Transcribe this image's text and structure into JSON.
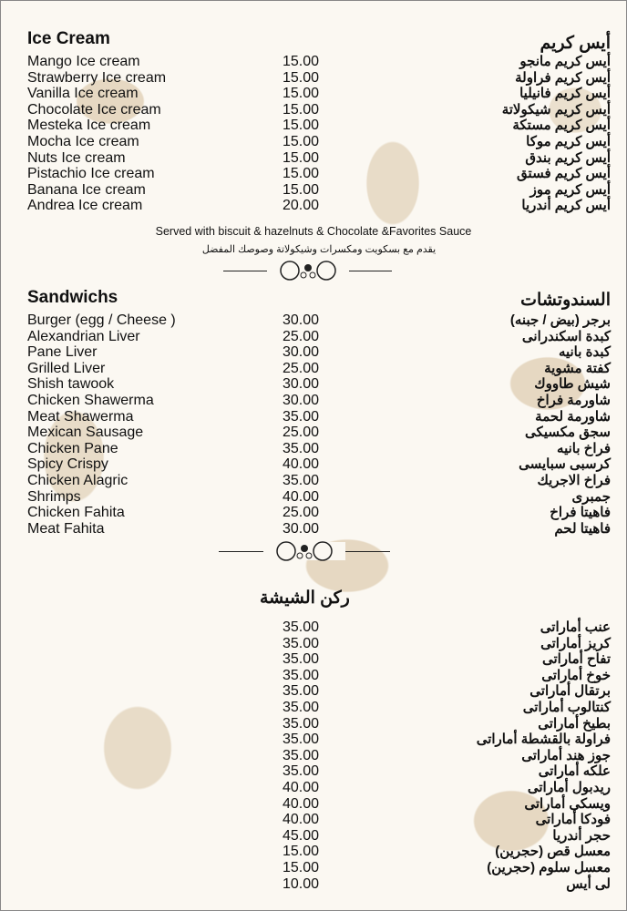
{
  "ice_cream": {
    "title_en": "Ice Cream",
    "title_ar": "أيس كريم",
    "items": [
      {
        "en": "Mango Ice cream",
        "price": "15.00",
        "ar": "أيس كريم مانجو"
      },
      {
        "en": "Strawberry Ice cream",
        "price": "15.00",
        "ar": "أيس كريم فراولة"
      },
      {
        "en": "Vanilla Ice cream",
        "price": "15.00",
        "ar": "أيس كريم فانيليا"
      },
      {
        "en": "Chocolate Ice cream",
        "price": "15.00",
        "ar": "أيس كريم شيكولاتة"
      },
      {
        "en": "Mesteka Ice cream",
        "price": "15.00",
        "ar": "أيس كريم مستكة"
      },
      {
        "en": "Mocha Ice cream",
        "price": "15.00",
        "ar": "أيس كريم موكا"
      },
      {
        "en": "Nuts Ice cream",
        "price": "15.00",
        "ar": "أيس كريم بندق"
      },
      {
        "en": "Pistachio Ice cream",
        "price": "15.00",
        "ar": "أيس كريم فستق"
      },
      {
        "en": "Banana Ice cream",
        "price": "15.00",
        "ar": "أيس كريم موز"
      },
      {
        "en": "Andrea Ice cream",
        "price": "20.00",
        "ar": "أيس كريم أندريا"
      }
    ],
    "note_en": "Served with biscuit & hazelnuts & Chocolate &Favorites Sauce",
    "note_ar": "يقدم مع بسكويت ومكسرات وشيكولاتة وصوصك المفضل"
  },
  "sandwiches": {
    "title_en": "Sandwichs",
    "title_ar": "السندوتشات",
    "items": [
      {
        "en": "Burger (egg / Cheese )",
        "price": "30.00",
        "ar": "برجر (بيض / جبنه)"
      },
      {
        "en": "Alexandrian Liver",
        "price": "25.00",
        "ar": "كبدة اسكندرانى"
      },
      {
        "en": "Pane Liver",
        "price": "30.00",
        "ar": "كبدة بانيه"
      },
      {
        "en": "Grilled Liver",
        "price": "25.00",
        "ar": "كفتة مشوية"
      },
      {
        "en": "Shish tawook",
        "price": "30.00",
        "ar": "شيش طاووك"
      },
      {
        "en": "Chicken Shawerma",
        "price": "30.00",
        "ar": "شاورمة فراخ"
      },
      {
        "en": "Meat Shawerma",
        "price": "35.00",
        "ar": "شاورمة لحمة"
      },
      {
        "en": "Mexican Sausage",
        "price": "25.00",
        "ar": "سجق مكسيكى"
      },
      {
        "en": "Chicken Pane",
        "price": "35.00",
        "ar": "فراخ بانيه"
      },
      {
        "en": "Spicy Crispy",
        "price": "40.00",
        "ar": "كرسبى سبايسى"
      },
      {
        "en": "Chicken Alagric",
        "price": "35.00",
        "ar": "فراخ الاجريك"
      },
      {
        "en": "Shrimps",
        "price": "40.00",
        "ar": "جمبرى"
      },
      {
        "en": "Chicken Fahita",
        "price": "25.00",
        "ar": "فاهيتا فراخ"
      },
      {
        "en": "Meat Fahita",
        "price": "30.00",
        "ar": "فاهيتا لحم"
      }
    ]
  },
  "shisha": {
    "title_ar": "ركن الشيشة",
    "items": [
      {
        "price": "35.00",
        "ar": "عنب أماراتى"
      },
      {
        "price": "35.00",
        "ar": "كريز أماراتى"
      },
      {
        "price": "35.00",
        "ar": "تفاح أماراتى"
      },
      {
        "price": "35.00",
        "ar": "خوخ أماراتى"
      },
      {
        "price": "35.00",
        "ar": "برتقال أماراتى"
      },
      {
        "price": "35.00",
        "ar": "كنتالوب أماراتى"
      },
      {
        "price": "35.00",
        "ar": "بطيخ أماراتى"
      },
      {
        "price": "35.00",
        "ar": "فراولة بالقشطة أماراتى"
      },
      {
        "price": "35.00",
        "ar": "جوز هند أماراتى"
      },
      {
        "price": "35.00",
        "ar": "علكه أماراتى"
      },
      {
        "price": "40.00",
        "ar": "ريدبول أماراتى"
      },
      {
        "price": "40.00",
        "ar": "ويسكى أماراتى"
      },
      {
        "price": "40.00",
        "ar": "فودكا أماراتى"
      },
      {
        "price": "45.00",
        "ar": "حجر أندريا"
      },
      {
        "price": "15.00",
        "ar": "معسل قص (حجرين)"
      },
      {
        "price": "15.00",
        "ar": "معسل سلوم (حجرين)"
      },
      {
        "price": "10.00",
        "ar": "لى أيس"
      }
    ]
  }
}
